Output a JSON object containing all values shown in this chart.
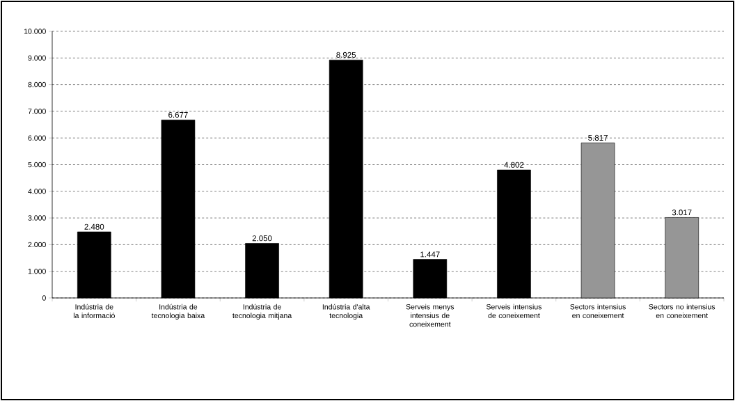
{
  "chart_data": {
    "type": "bar",
    "categories": [
      "Indústria de la informació",
      "Indústria de tecnologia baixa",
      "Indústria de tecnologia mitjana",
      "Indústria d'alta tecnologia",
      "Serveis menys intensius de coneixement",
      "Serveis intensius de coneixement",
      "Sectors intensius en coneixement",
      "Sectors no intensius en coneixement"
    ],
    "values": [
      2480,
      6677,
      2050,
      8925,
      1447,
      4802,
      5817,
      3017
    ],
    "value_labels": [
      "2.480",
      "6.677",
      "2.050",
      "8.925",
      "1.447",
      "4.802",
      "5.817",
      "3.017"
    ],
    "colors": [
      "#000000",
      "#000000",
      "#000000",
      "#000000",
      "#000000",
      "#000000",
      "#969696",
      "#969696"
    ],
    "ylim": [
      0,
      10000
    ],
    "yticks": [
      0,
      {
        "value": 1000,
        "label": "1.000"
      },
      {
        "value": 2000,
        "label": "2.000"
      },
      {
        "value": 3000,
        "label": "3.000"
      },
      {
        "value": 4000,
        "label": "4.000"
      },
      {
        "value": 5000,
        "label": "5.000"
      },
      {
        "value": 6000,
        "label": "6.000"
      },
      {
        "value": 7000,
        "label": "7.000"
      },
      {
        "value": 8000,
        "label": "8.000"
      },
      {
        "value": 9000,
        "label": "9.000"
      },
      {
        "value": 10000,
        "label": "10.000"
      }
    ],
    "grid": "y"
  }
}
